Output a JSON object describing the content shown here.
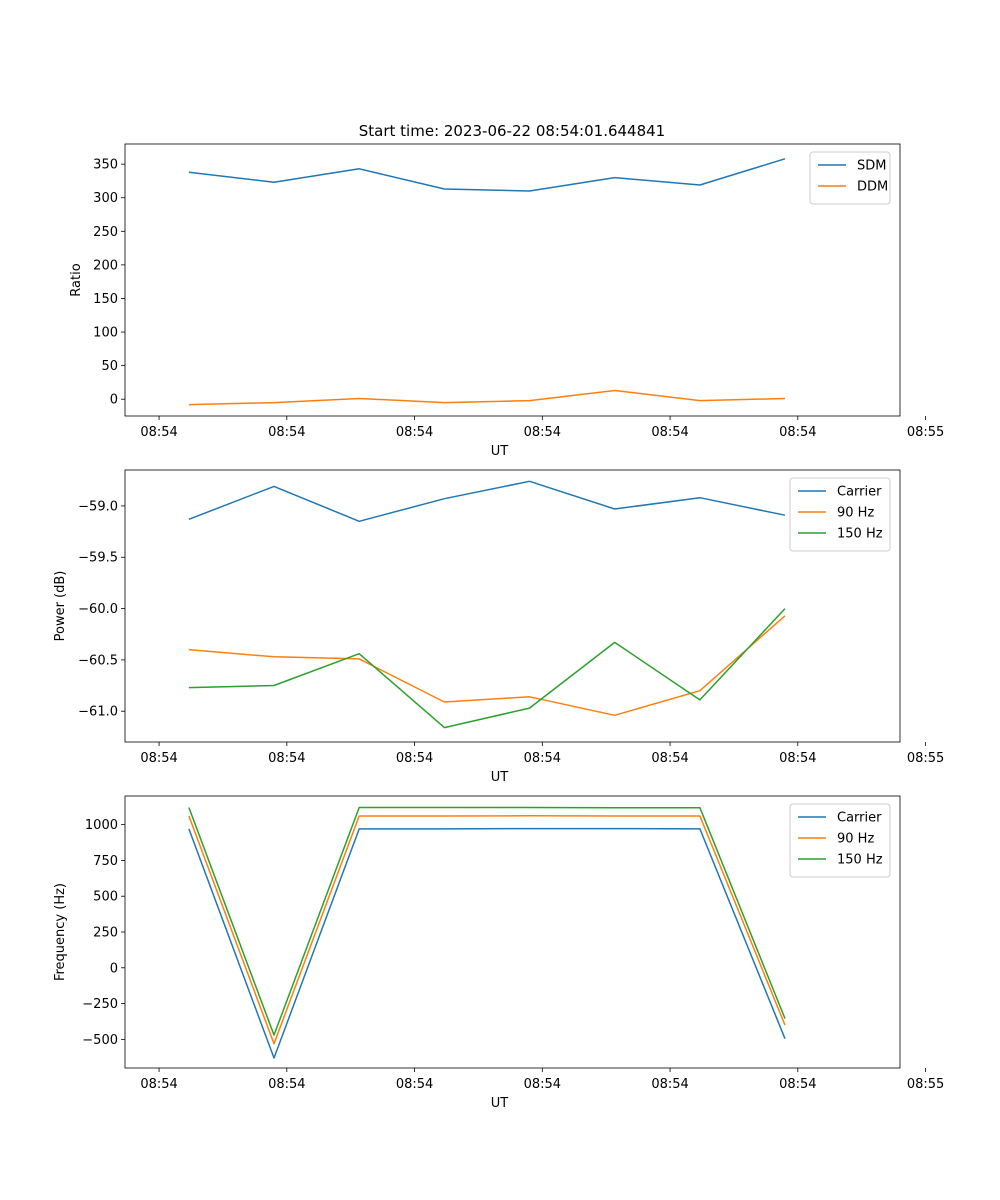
{
  "figure_title": "Start time: 2023-06-22 08:54:01.644841",
  "colors": {
    "c0": "#1f77b4",
    "c1": "#ff7f0e",
    "c2": "#2ca02c"
  },
  "chart_data": [
    {
      "type": "line",
      "title": "Start time: 2023-06-22 08:54:01.644841",
      "xlabel": "UT",
      "ylabel": "Ratio",
      "xlim": [
        -0.4,
        8.7
      ],
      "ylim": [
        -25,
        380
      ],
      "x": [
        0.35,
        1.35,
        2.35,
        3.35,
        4.35,
        5.35,
        6.35,
        7.35
      ],
      "xticks": [
        0,
        1.5,
        3,
        4.5,
        6,
        7.5,
        9
      ],
      "xtick_labels": [
        "08:54",
        "08:54",
        "08:54",
        "08:54",
        "08:54",
        "08:54",
        "08:55"
      ],
      "yticks": [
        0,
        50,
        100,
        150,
        200,
        250,
        300,
        350
      ],
      "ytick_labels": [
        "0",
        "50",
        "100",
        "150",
        "200",
        "250",
        "300",
        "350"
      ],
      "legend": "upper right",
      "series": [
        {
          "name": "SDM",
          "color": "#1f77b4",
          "values": [
            338,
            323,
            343,
            313,
            310,
            330,
            319,
            358
          ]
        },
        {
          "name": "DDM",
          "color": "#ff7f0e",
          "values": [
            -8,
            -5,
            1,
            -5,
            -2,
            13,
            -2,
            1
          ]
        }
      ]
    },
    {
      "type": "line",
      "title": "",
      "xlabel": "UT",
      "ylabel": "Power (dB)",
      "xlim": [
        -0.4,
        8.7
      ],
      "ylim": [
        -61.3,
        -58.65
      ],
      "x": [
        0.35,
        1.35,
        2.35,
        3.35,
        4.35,
        5.35,
        6.35,
        7.35
      ],
      "xticks": [
        0,
        1.5,
        3,
        4.5,
        6,
        7.5,
        9
      ],
      "xtick_labels": [
        "08:54",
        "08:54",
        "08:54",
        "08:54",
        "08:54",
        "08:54",
        "08:55"
      ],
      "yticks": [
        -61.0,
        -60.5,
        -60.0,
        -59.5,
        -59.0
      ],
      "ytick_labels": [
        "−61.0",
        "−60.5",
        "−60.0",
        "−59.5",
        "−59.0"
      ],
      "legend": "upper right",
      "series": [
        {
          "name": "Carrier",
          "color": "#1f77b4",
          "values": [
            -59.13,
            -58.81,
            -59.15,
            -58.93,
            -58.76,
            -59.03,
            -58.92,
            -59.09
          ]
        },
        {
          "name": "90 Hz",
          "color": "#ff7f0e",
          "values": [
            -60.4,
            -60.47,
            -60.49,
            -60.91,
            -60.86,
            -61.04,
            -60.8,
            -60.07
          ]
        },
        {
          "name": "150 Hz",
          "color": "#2ca02c",
          "values": [
            -60.77,
            -60.75,
            -60.44,
            -61.16,
            -60.97,
            -60.33,
            -60.89,
            -60.0
          ]
        }
      ]
    },
    {
      "type": "line",
      "title": "",
      "xlabel": "UT",
      "ylabel": "Frequency (Hz)",
      "xlim": [
        -0.4,
        8.7
      ],
      "ylim": [
        -700,
        1200
      ],
      "x": [
        0.35,
        1.35,
        2.35,
        3.35,
        4.35,
        5.35,
        6.35,
        7.35
      ],
      "xticks": [
        0,
        1.5,
        3,
        4.5,
        6,
        7.5,
        9
      ],
      "xtick_labels": [
        "08:54",
        "08:54",
        "08:54",
        "08:54",
        "08:54",
        "08:54",
        "08:55"
      ],
      "yticks": [
        -500,
        -250,
        0,
        250,
        500,
        750,
        1000
      ],
      "ytick_labels": [
        "−500",
        "−250",
        "0",
        "250",
        "500",
        "750",
        "1000"
      ],
      "legend": "upper right",
      "series": [
        {
          "name": "Carrier",
          "color": "#1f77b4",
          "values": [
            970,
            -630,
            970,
            970,
            972,
            972,
            970,
            -495
          ]
        },
        {
          "name": "90 Hz",
          "color": "#ff7f0e",
          "values": [
            1060,
            -530,
            1060,
            1060,
            1062,
            1060,
            1060,
            -400
          ]
        },
        {
          "name": "150 Hz",
          "color": "#2ca02c",
          "values": [
            1120,
            -470,
            1120,
            1120,
            1120,
            1118,
            1118,
            -355
          ]
        }
      ]
    }
  ]
}
